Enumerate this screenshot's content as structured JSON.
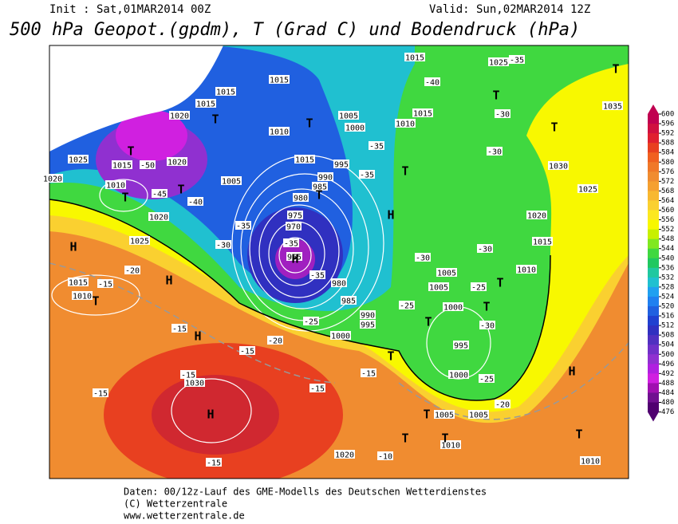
{
  "header": {
    "init": "Init : Sat,01MAR2014 00Z",
    "valid": "Valid: Sun,02MAR2014 12Z",
    "title": "500 hPa Geopot.(gpdm), T (Grad C) und Bodendruck (hPa)"
  },
  "colorbar": {
    "values": [
      600,
      596,
      592,
      588,
      584,
      580,
      576,
      572,
      568,
      564,
      560,
      556,
      552,
      548,
      544,
      540,
      536,
      532,
      528,
      524,
      520,
      516,
      512,
      508,
      504,
      500,
      496,
      492,
      488,
      484,
      480,
      476
    ],
    "colors": [
      "#c00050",
      "#d01040",
      "#e02030",
      "#e84020",
      "#f06020",
      "#f07828",
      "#f08c30",
      "#f5a030",
      "#f8b830",
      "#fad030",
      "#fce820",
      "#f8f800",
      "#c8f000",
      "#80e820",
      "#40d840",
      "#20c860",
      "#20c8a0",
      "#20c0d0",
      "#20a0f0",
      "#2080f0",
      "#2060e0",
      "#2040d0",
      "#3030c0",
      "#5030c0",
      "#7030c8",
      "#9030d0",
      "#b020e0",
      "#d020e0",
      "#a010b0",
      "#701090",
      "#500070"
    ]
  },
  "map_labels": [
    "1015",
    "1015",
    "1015",
    "1020",
    "1015",
    "1005",
    "1000",
    "1010",
    "1015",
    "1025",
    "1035",
    "1030",
    "1025",
    "1020",
    "1015",
    "1010",
    "1005",
    "1005",
    "1000",
    "995",
    "1000",
    "1005",
    "1005",
    "1010",
    "1020",
    "1010",
    "1030",
    "1025",
    "1015",
    "1010",
    "1020",
    "1010",
    "1020",
    "1025",
    "1015",
    "1020",
    "1005",
    "1010",
    "1015",
    "995",
    "990",
    "985",
    "980",
    "975",
    "970",
    "965",
    "980",
    "985",
    "990",
    "995",
    "1000",
    "-50",
    "-45",
    "-40",
    "-35",
    "-35",
    "-30",
    "-35",
    "-40",
    "-35",
    "-30",
    "-30",
    "-35",
    "-35",
    "-30",
    "-30",
    "-25",
    "-25",
    "-30",
    "-25",
    "-20",
    "-20",
    "-15",
    "-15",
    "-15",
    "-15",
    "-15",
    "-15",
    "-15",
    "-15",
    "-10",
    "-20",
    "-25",
    "T",
    "T",
    "T",
    "T",
    "T",
    "T",
    "T",
    "T",
    "T",
    "T",
    "H",
    "H",
    "H",
    "H",
    "H",
    "H",
    "T",
    "T",
    "T",
    "T",
    "T",
    "T",
    "T",
    "T",
    "T",
    "H"
  ],
  "footer": [
    "Daten: 00/12z-Lauf des GME-Modells des Deutschen Wetterdienstes",
    "(C) Wetterzentrale",
    "www.wetterzentrale.de"
  ]
}
